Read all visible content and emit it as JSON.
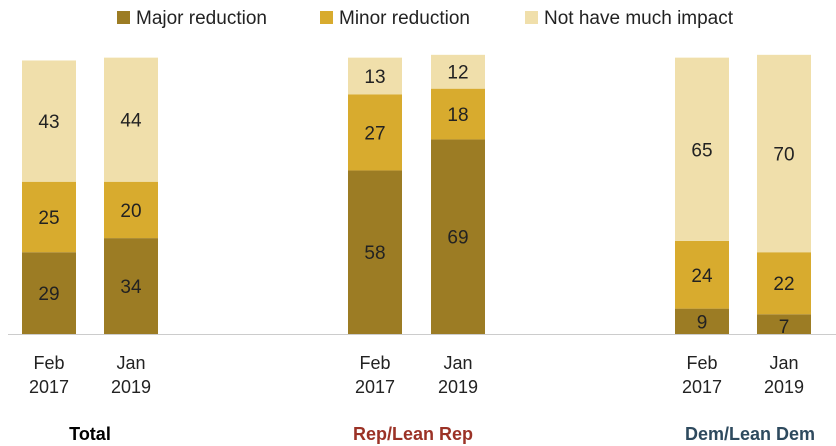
{
  "chart_data": {
    "type": "bar",
    "stacked": true,
    "legend": {
      "position": "top",
      "items": [
        {
          "name": "Major reduction",
          "color": "#9c7c24"
        },
        {
          "name": "Minor reduction",
          "color": "#d8ab2e"
        },
        {
          "name": "Not have much impact",
          "color": "#f0dfab"
        }
      ]
    },
    "groups": [
      {
        "label": "Total",
        "label_color": "#000000",
        "bars": [
          {
            "x_label": [
              "Feb",
              "2017"
            ],
            "values": [
              29,
              25,
              43
            ]
          },
          {
            "x_label": [
              "Jan",
              "2019"
            ],
            "values": [
              34,
              20,
              44
            ]
          }
        ]
      },
      {
        "label": "Rep/Lean Rep",
        "label_color": "#9b3226",
        "bars": [
          {
            "x_label": [
              "Feb",
              "2017"
            ],
            "values": [
              58,
              27,
              13
            ]
          },
          {
            "x_label": [
              "Jan",
              "2019"
            ],
            "values": [
              69,
              18,
              12
            ]
          }
        ]
      },
      {
        "label": "Dem/Lean Dem",
        "label_color": "#2e4a5e",
        "bars": [
          {
            "x_label": [
              "Feb",
              "2017"
            ],
            "values": [
              9,
              24,
              65
            ]
          },
          {
            "x_label": [
              "Jan",
              "2019"
            ],
            "values": [
              7,
              22,
              70
            ]
          }
        ]
      }
    ],
    "ylim": [
      0,
      100
    ],
    "baseline_color": "#cccccc"
  }
}
